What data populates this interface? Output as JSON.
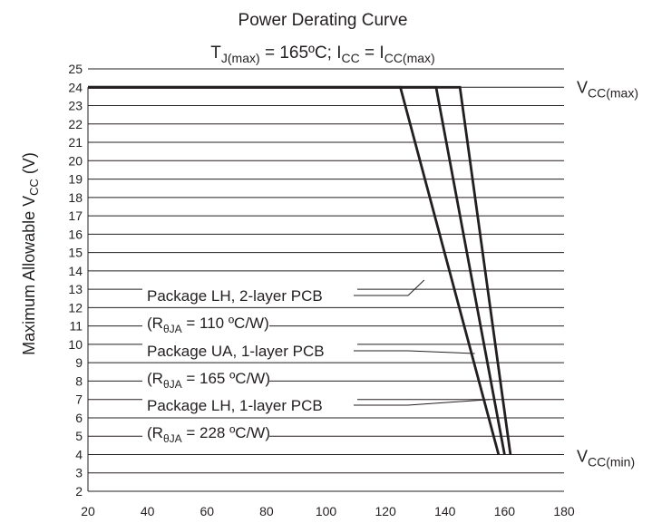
{
  "chart_data": {
    "type": "line",
    "title": "Power Derating Curve",
    "subtitle": {
      "tj_sym": "T",
      "tj_sub": "J(max)",
      "tj_rest": " = 165ºC; I",
      "icc_sub": "CC",
      "icc_rest": " =  I",
      "iccmax_sub": "CC(max)"
    },
    "xlabel": "",
    "ylabel": {
      "main": "Maximum Allowable V",
      "sub": "CC",
      "unit": " (V)"
    },
    "xlim": [
      20,
      180
    ],
    "ylim": [
      2,
      25
    ],
    "xticks": [
      20,
      40,
      60,
      80,
      100,
      120,
      140,
      160,
      180
    ],
    "yticks": [
      2,
      3,
      4,
      5,
      6,
      7,
      8,
      9,
      10,
      11,
      12,
      13,
      14,
      15,
      16,
      17,
      18,
      19,
      20,
      21,
      22,
      23,
      24,
      25
    ],
    "grid": "horizontal",
    "series": [
      {
        "x": [
          20,
          145,
          162
        ],
        "y": [
          24,
          24,
          4
        ]
      },
      {
        "x": [
          20,
          137,
          160
        ],
        "y": [
          24,
          24,
          4
        ]
      },
      {
        "x": [
          20,
          125,
          158
        ],
        "y": [
          24,
          24,
          4
        ]
      }
    ],
    "annotations": [
      {
        "line1": "Package LH, 2-layer PCB",
        "sym": "(R",
        "sub": "θJA",
        "line2": " = 110 ºC/W)",
        "pointer": [
          133,
          13.5
        ]
      },
      {
        "line1": "Package UA, 1-layer PCB",
        "sym": "(R",
        "sub": "θJA",
        "line2": " = 165 ºC/W)",
        "pointer": [
          150,
          9.5
        ]
      },
      {
        "line1": "Package LH, 1-layer PCB",
        "sym": "(R",
        "sub": "θJA",
        "line2": " = 228 ºC/W)",
        "pointer": [
          155,
          7.0
        ]
      }
    ],
    "right_labels": [
      {
        "main": "V",
        "sub": "CC(max)",
        "y": 24
      },
      {
        "main": "V",
        "sub": "CC(min)",
        "y": 4
      }
    ]
  }
}
